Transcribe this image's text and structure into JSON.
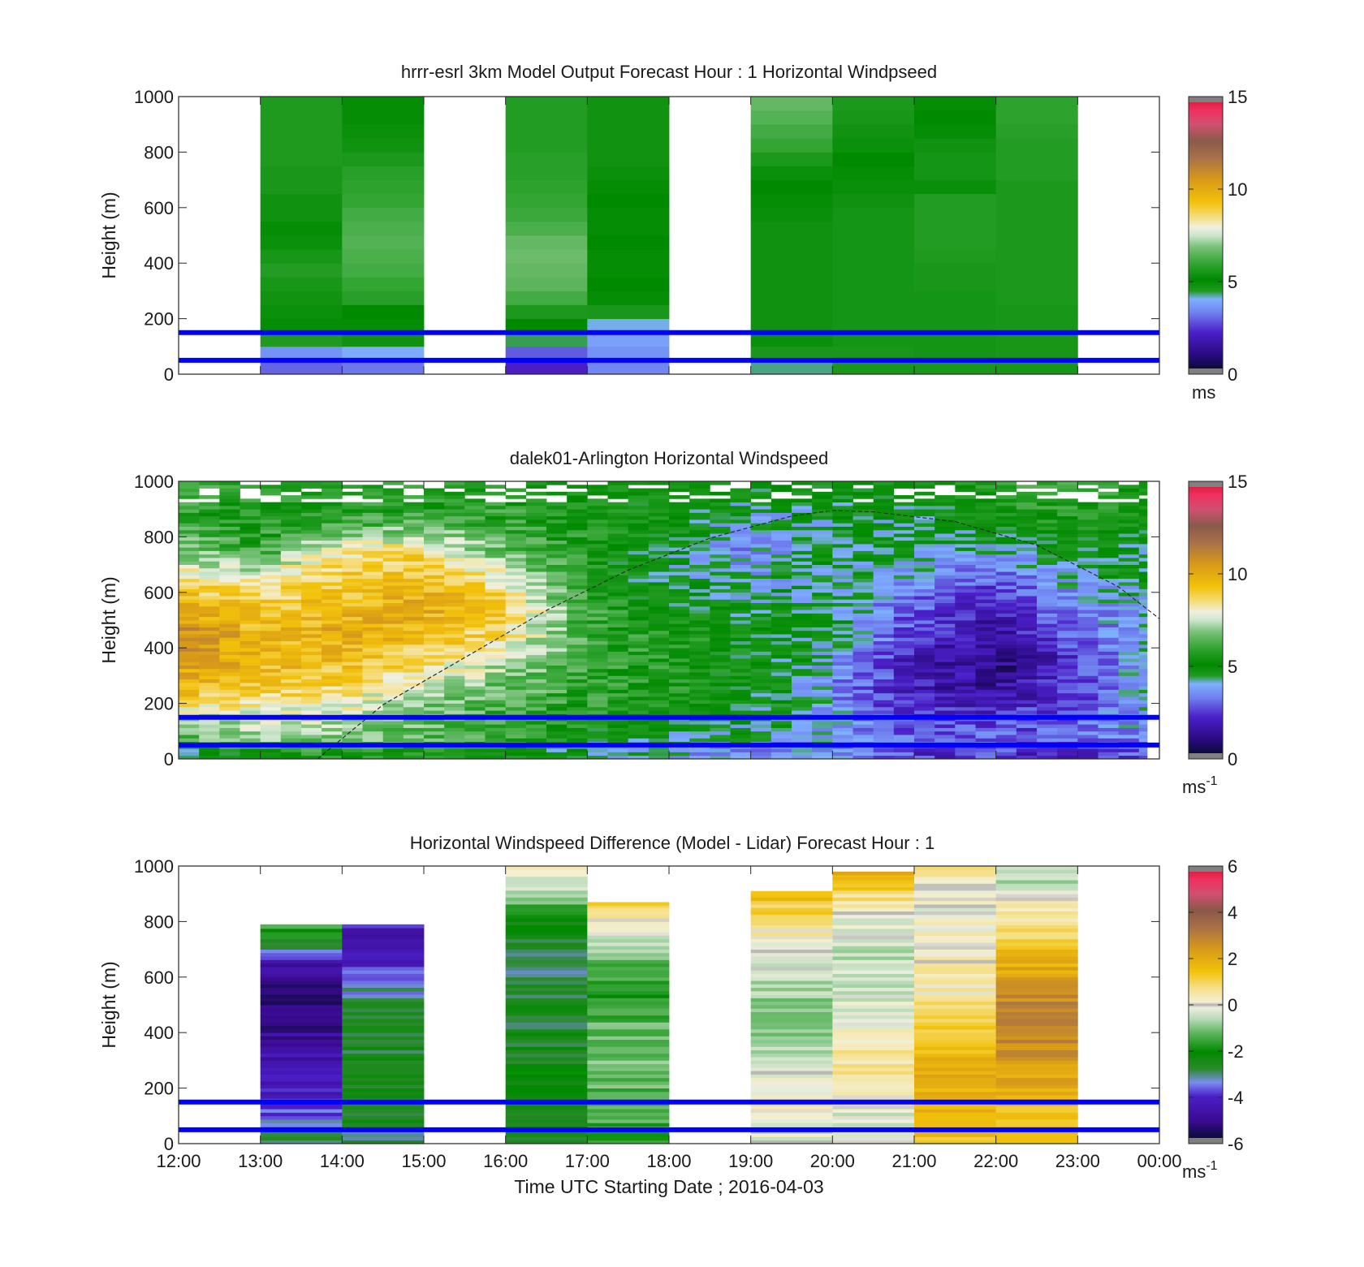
{
  "figure": {
    "xlabel": "Time UTC  Starting Date ; 2016-04-03",
    "x_ticks": [
      "12:00",
      "13:00",
      "14:00",
      "15:00",
      "16:00",
      "17:00",
      "18:00",
      "19:00",
      "20:00",
      "21:00",
      "22:00",
      "23:00",
      "00:00"
    ],
    "ref_lines_m": [
      50,
      150
    ],
    "ref_line_color": "#0000ff"
  },
  "chart_data": [
    {
      "type": "heatmap",
      "title": "hrrr-esrl 3km Model Output   Forecast Hour : 1 Horizontal Windpseed",
      "ylabel": "Height (m)",
      "ylim": [
        0,
        1000
      ],
      "y_ticks": [
        "0",
        "200",
        "400",
        "600",
        "800",
        "1000"
      ],
      "colorbar": {
        "ticks": [
          "0",
          "5",
          "10",
          "15"
        ],
        "range": [
          0,
          15
        ],
        "unit": "ms"
      },
      "columns": [
        {
          "hour": 13,
          "values": [
            3.0,
            3.6,
            4.5,
            5.2,
            5.3,
            5.4,
            5.5,
            5.7,
            5.5,
            5.3,
            5.0,
            4.8,
            4.8,
            4.6,
            4.6,
            4.5,
            4.5,
            4.5,
            4.5,
            4.5
          ]
        },
        {
          "hour": 14,
          "values": [
            3.2,
            4.0,
            4.8,
            5.0,
            5.1,
            5.8,
            6.0,
            6.2,
            6.3,
            6.4,
            6.3,
            6.2,
            6.0,
            5.9,
            5.8,
            5.6,
            5.4,
            5.3,
            5.2,
            5.2
          ]
        },
        {
          "hour": 16,
          "values": [
            2.2,
            2.9,
            4.4,
            5.1,
            5.6,
            6.2,
            6.5,
            6.6,
            6.7,
            6.6,
            6.3,
            6.1,
            6.0,
            5.9,
            5.8,
            5.8,
            5.7,
            5.7,
            5.7,
            5.7
          ]
        },
        {
          "hour": 17,
          "values": [
            3.4,
            3.6,
            3.8,
            4.1,
            4.6,
            5.0,
            5.1,
            5.2,
            5.2,
            5.1,
            5.0,
            5.0,
            5.1,
            5.2,
            5.3,
            5.4,
            5.4,
            5.4,
            5.4,
            5.4
          ]
        },
        {
          "hour": 19,
          "values": [
            4.3,
            4.6,
            4.9,
            4.8,
            4.8,
            4.8,
            4.8,
            4.8,
            4.8,
            4.8,
            4.8,
            4.9,
            5.0,
            5.1,
            5.3,
            5.6,
            6.0,
            6.2,
            6.4,
            6.6
          ]
        },
        {
          "hour": 20,
          "values": [
            4.6,
            4.6,
            4.7,
            4.7,
            4.7,
            4.7,
            4.7,
            4.7,
            4.7,
            4.7,
            4.7,
            4.7,
            4.8,
            4.9,
            5.0,
            5.1,
            5.3,
            5.4,
            5.5,
            5.6
          ]
        },
        {
          "hour": 21,
          "values": [
            4.6,
            4.7,
            4.7,
            4.7,
            4.7,
            4.7,
            4.6,
            4.6,
            4.5,
            5.7,
            5.7,
            5.7,
            5.7,
            4.9,
            4.7,
            4.7,
            4.8,
            5.0,
            5.1,
            5.2
          ]
        },
        {
          "hour": 22,
          "values": [
            5.5,
            5.5,
            5.5,
            5.5,
            5.5,
            5.6,
            5.6,
            5.6,
            5.6,
            5.6,
            5.6,
            5.6,
            5.6,
            5.6,
            5.7,
            5.7,
            5.7,
            5.8,
            5.9,
            5.9
          ]
        }
      ]
    },
    {
      "type": "heatmap",
      "title": "dalek01-Arlington  Horizontal Windspeed",
      "ylabel": "Height (m)",
      "ylim": [
        0,
        1000
      ],
      "y_ticks": [
        "0",
        "200",
        "400",
        "600",
        "800",
        "1000"
      ],
      "colorbar": {
        "ticks": [
          "0",
          "5",
          "10",
          "15"
        ],
        "range": [
          0,
          15
        ],
        "unit": "ms",
        "unit_exp": "-1"
      },
      "time_range_hours": [
        12.0,
        23.85
      ],
      "heights_m": [
        25,
        75,
        150,
        250,
        350,
        450,
        550,
        650,
        750,
        850,
        950
      ],
      "times_h": [
        12,
        13,
        14,
        15,
        16,
        17,
        18,
        19,
        20,
        21,
        22,
        23,
        23.85
      ],
      "speed_ms": [
        [
          4.5,
          6.5,
          7.5,
          9.5,
          10.5,
          11.0,
          10.0,
          8.5,
          7.0,
          6.0,
          6.0
        ],
        [
          5.5,
          7.0,
          7.5,
          9.0,
          9.5,
          9.5,
          9.0,
          8.0,
          6.0,
          5.5,
          5.5
        ],
        [
          5.5,
          7.0,
          7.5,
          8.5,
          9.5,
          10.0,
          9.5,
          9.0,
          8.5,
          6.0,
          5.5
        ],
        [
          5.5,
          6.5,
          6.5,
          7.5,
          8.5,
          9.5,
          10.0,
          9.5,
          8.5,
          6.5,
          5.5
        ],
        [
          5.0,
          6.0,
          6.0,
          6.5,
          7.5,
          8.5,
          9.0,
          8.0,
          6.5,
          6.0,
          5.5
        ],
        [
          4.5,
          5.0,
          5.5,
          6.0,
          6.0,
          6.0,
          6.0,
          5.5,
          5.5,
          5.5,
          5.0
        ],
        [
          4.0,
          4.5,
          5.0,
          5.5,
          5.5,
          5.5,
          5.0,
          4.5,
          4.5,
          5.0,
          5.0
        ],
        [
          3.5,
          4.0,
          4.5,
          5.0,
          5.0,
          5.0,
          4.5,
          4.0,
          3.5,
          4.0,
          4.5
        ],
        [
          3.5,
          4.0,
          4.0,
          3.5,
          4.0,
          4.5,
          4.5,
          4.5,
          4.5,
          4.5,
          4.5
        ],
        [
          2.5,
          3.0,
          2.5,
          2.0,
          2.0,
          2.5,
          3.0,
          3.5,
          4.5,
          4.5,
          4.5
        ],
        [
          2.5,
          3.0,
          2.5,
          1.5,
          1.0,
          1.5,
          2.0,
          3.0,
          4.0,
          5.0,
          5.5
        ],
        [
          2.0,
          3.0,
          3.0,
          2.5,
          2.5,
          3.0,
          3.5,
          4.0,
          5.0,
          5.5,
          6.0
        ],
        [
          3.0,
          3.5,
          4.0,
          4.0,
          4.0,
          4.0,
          4.0,
          4.5,
          4.5,
          5.0,
          5.0
        ]
      ],
      "dashed_curve": {
        "times_h": [
          13.7,
          14.5,
          15.5,
          16.5,
          17.5,
          18.5,
          19.5,
          20.0,
          20.5,
          21.5,
          22.5,
          23.5,
          24.0
        ],
        "heights_m": [
          0,
          195,
          365,
          535,
          680,
          795,
          875,
          895,
          890,
          855,
          770,
          620,
          505
        ]
      }
    },
    {
      "type": "heatmap",
      "title": "Horizontal Windspeed Difference (Model - Lidar) Forecast Hour : 1",
      "ylabel": "Height (m)",
      "ylim": [
        0,
        1000
      ],
      "y_ticks": [
        "0",
        "200",
        "400",
        "600",
        "800",
        "1000"
      ],
      "colorbar": {
        "ticks": [
          "-6",
          "-4",
          "-2",
          "0",
          "2",
          "4",
          "6"
        ],
        "range": [
          -6,
          6
        ],
        "unit": "ms",
        "unit_exp": "-1"
      },
      "columns": [
        {
          "hour": 13,
          "top_m": 790,
          "heights_m": [
            25,
            125,
            225,
            325,
            425,
            525,
            600,
            650,
            700,
            750,
            790
          ],
          "values_ms": [
            -3.0,
            -3.8,
            -4.2,
            -4.6,
            -5.0,
            -5.2,
            -5.0,
            -4.5,
            -3.0,
            -2.0,
            -1.5
          ]
        },
        {
          "hour": 14,
          "top_m": 790,
          "heights_m": [
            25,
            125,
            225,
            325,
            425,
            525,
            600,
            650,
            700,
            750,
            790
          ],
          "values_ms": [
            -2.8,
            -2.6,
            -2.5,
            -2.6,
            -2.7,
            -3.0,
            -3.5,
            -4.0,
            -4.2,
            -4.5,
            -4.0
          ]
        },
        {
          "hour": 16,
          "top_m": 1000,
          "heights_m": [
            25,
            125,
            225,
            325,
            425,
            525,
            625,
            725,
            825,
            925,
            1000
          ],
          "values_ms": [
            -2.5,
            -2.3,
            -2.2,
            -2.5,
            -2.6,
            -2.6,
            -2.8,
            -2.8,
            -1.8,
            -0.5,
            0.5
          ]
        },
        {
          "hour": 17,
          "top_m": 870,
          "heights_m": [
            25,
            125,
            225,
            325,
            425,
            525,
            625,
            725,
            825,
            870
          ],
          "values_ms": [
            -1.5,
            -1.5,
            -1.2,
            -1.0,
            -1.2,
            -1.8,
            -1.5,
            -0.5,
            0.5,
            1.0
          ]
        },
        {
          "hour": 19,
          "top_m": 910,
          "heights_m": [
            25,
            125,
            225,
            325,
            425,
            525,
            625,
            725,
            825,
            910
          ],
          "values_ms": [
            -0.2,
            0.0,
            0.0,
            -0.5,
            -0.8,
            -0.8,
            -0.5,
            0.0,
            1.0,
            1.5
          ]
        },
        {
          "hour": 20,
          "top_m": 980,
          "heights_m": [
            25,
            125,
            225,
            325,
            425,
            525,
            625,
            725,
            825,
            925,
            980
          ],
          "values_ms": [
            -0.3,
            -0.2,
            0.5,
            0.7,
            0.0,
            -0.3,
            -0.5,
            -0.5,
            0.0,
            1.2,
            1.8
          ]
        },
        {
          "hour": 21,
          "top_m": 1000,
          "heights_m": [
            25,
            125,
            225,
            325,
            425,
            525,
            625,
            725,
            825,
            925,
            1000
          ],
          "values_ms": [
            1.5,
            1.8,
            1.8,
            1.6,
            1.3,
            0.5,
            0.3,
            0.2,
            0.0,
            0.3,
            0.5
          ]
        },
        {
          "hour": 22,
          "top_m": 1000,
          "heights_m": [
            25,
            125,
            225,
            325,
            425,
            525,
            625,
            725,
            825,
            925,
            1000
          ],
          "values_ms": [
            1.6,
            1.6,
            2.0,
            2.6,
            3.0,
            2.8,
            2.0,
            1.2,
            0.5,
            -0.5,
            -0.8
          ]
        }
      ]
    }
  ]
}
